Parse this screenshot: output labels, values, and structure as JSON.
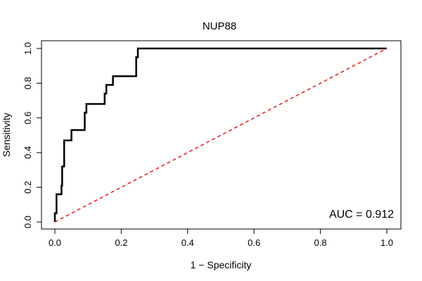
{
  "chart_data": {
    "type": "line",
    "title": "NUP88",
    "xlabel": "1 − Specificity",
    "ylabel": "Sensitivity",
    "xlim": [
      0,
      1
    ],
    "ylim": [
      0,
      1
    ],
    "x_ticks": [
      "0.0",
      "0.2",
      "0.4",
      "0.6",
      "0.8",
      "1.0"
    ],
    "y_ticks": [
      "0.0",
      "0.2",
      "0.4",
      "0.6",
      "0.8",
      "1.0"
    ],
    "grid": false,
    "annotation": "AUC = 0.912",
    "colors": {
      "roc": "#000000",
      "reference": "#e41a1c"
    },
    "series": [
      {
        "style": "step",
        "x": [
          0,
          0,
          0.005,
          0.005,
          0.02,
          0.02,
          0.022,
          0.022,
          0.028,
          0.028,
          0.05,
          0.05,
          0.09,
          0.09,
          0.095,
          0.095,
          0.15,
          0.15,
          0.155,
          0.155,
          0.175,
          0.175,
          0.245,
          0.245,
          0.25,
          0.25,
          1.0
        ],
        "y": [
          0,
          0.05,
          0.05,
          0.16,
          0.16,
          0.21,
          0.21,
          0.32,
          0.32,
          0.47,
          0.47,
          0.53,
          0.53,
          0.63,
          0.63,
          0.68,
          0.68,
          0.74,
          0.74,
          0.79,
          0.79,
          0.84,
          0.84,
          0.95,
          0.95,
          1.0,
          1.0
        ]
      },
      {
        "style": "dashed",
        "x": [
          0,
          1
        ],
        "y": [
          0,
          1
        ]
      }
    ]
  }
}
